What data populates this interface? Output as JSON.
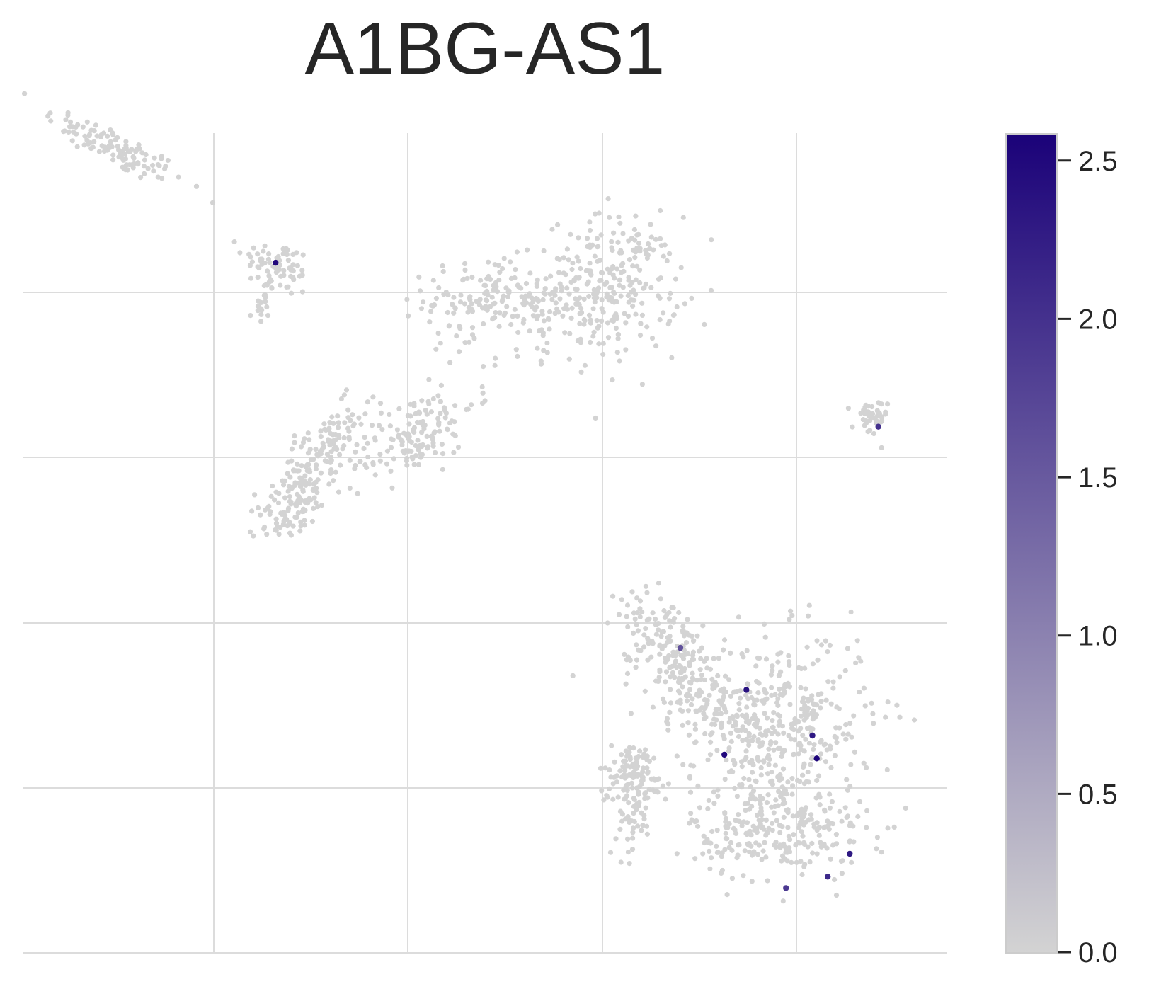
{
  "chart_data": {
    "type": "scatter",
    "title": "A1BG-AS1",
    "xlabel": "",
    "ylabel": "",
    "grid": true,
    "colorbar": {
      "min": 0.0,
      "max": 2.58,
      "ticks": [
        "0.0",
        "0.5",
        "1.0",
        "1.5",
        "2.0",
        "2.5"
      ],
      "tick_values": [
        0.0,
        0.5,
        1.0,
        1.5,
        2.0,
        2.5
      ],
      "color_low": "#d3d3d3",
      "color_high": "#1b0279"
    },
    "background_color": "#d3d3d3",
    "clusters": [
      {
        "x": 4.2,
        "y": 9.1,
        "n": 120,
        "sx": 1.6,
        "sy": 0.25,
        "tilt": -0.28
      },
      {
        "x": 11.6,
        "y": 6.0,
        "n": 70,
        "sx": 0.8,
        "sy": 0.35,
        "tilt": -0.15
      },
      {
        "x": 11.0,
        "y": 5.0,
        "n": 18,
        "sx": 0.2,
        "sy": 0.35,
        "tilt": 0
      },
      {
        "x": 21.5,
        "y": 5.2,
        "n": 160,
        "sx": 1.6,
        "sy": 0.5,
        "tilt": 0.02
      },
      {
        "x": 26.8,
        "y": 5.5,
        "n": 260,
        "sx": 1.5,
        "sy": 0.9,
        "tilt": 0
      },
      {
        "x": 24.0,
        "y": 4.3,
        "n": 40,
        "sx": 2.2,
        "sy": 0.5,
        "tilt": 0.15
      },
      {
        "x": 38.5,
        "y": 2.0,
        "n": 40,
        "sx": 0.4,
        "sy": 0.25,
        "tilt": 0
      },
      {
        "x": 13.6,
        "y": 1.1,
        "n": 130,
        "sx": 1.2,
        "sy": 0.45,
        "tilt": 0.5
      },
      {
        "x": 17.8,
        "y": 1.6,
        "n": 150,
        "sx": 1.4,
        "sy": 0.5,
        "tilt": 0.3
      },
      {
        "x": 12.3,
        "y": -0.3,
        "n": 90,
        "sx": 0.8,
        "sy": 0.4,
        "tilt": 0.3
      },
      {
        "x": 29.5,
        "y": -3.9,
        "n": 130,
        "sx": 1.0,
        "sy": 0.6,
        "tilt": -0.5
      },
      {
        "x": 30.8,
        "y": -5.2,
        "n": 120,
        "sx": 1.8,
        "sy": 0.6,
        "tilt": -0.3
      },
      {
        "x": 34.5,
        "y": -5.8,
        "n": 330,
        "sx": 2.1,
        "sy": 1.1,
        "tilt": 0
      },
      {
        "x": 33.6,
        "y": -7.4,
        "n": 120,
        "sx": 1.5,
        "sy": 0.9,
        "tilt": 0
      },
      {
        "x": 34.4,
        "y": -8.9,
        "n": 220,
        "sx": 2.0,
        "sy": 0.6,
        "tilt": 0
      },
      {
        "x": 27.8,
        "y": -7.3,
        "n": 110,
        "sx": 0.8,
        "sy": 0.4,
        "tilt": 0
      },
      {
        "x": 27.8,
        "y": -8.5,
        "n": 40,
        "sx": 0.4,
        "sy": 0.5,
        "tilt": 0
      }
    ],
    "expressed_points": [
      {
        "x": 11.5,
        "y": 6.1,
        "value": 2.5
      },
      {
        "x": 38.9,
        "y": 1.8,
        "value": 2.0
      },
      {
        "x": 29.9,
        "y": -4.0,
        "value": 1.6
      },
      {
        "x": 32.9,
        "y": -5.1,
        "value": 2.4
      },
      {
        "x": 31.9,
        "y": -6.8,
        "value": 2.5
      },
      {
        "x": 35.9,
        "y": -6.3,
        "value": 2.3
      },
      {
        "x": 36.1,
        "y": -6.9,
        "value": 2.55
      },
      {
        "x": 37.6,
        "y": -9.4,
        "value": 2.3
      },
      {
        "x": 36.6,
        "y": -10.0,
        "value": 2.1
      },
      {
        "x": 34.7,
        "y": -10.3,
        "value": 1.9
      }
    ],
    "xlim": [
      0,
      42
    ],
    "ylim": [
      -12,
      9.5
    ]
  }
}
